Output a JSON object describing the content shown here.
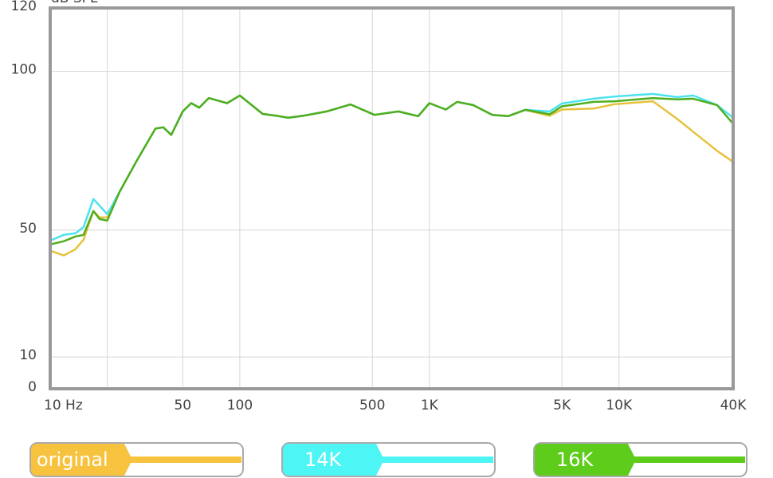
{
  "chart_data": {
    "type": "line",
    "ylabel": "dB SPL",
    "x": [
      10,
      11.8,
      13.6,
      15,
      16.9,
      18.2,
      20,
      23.2,
      28.7,
      35.9,
      39.5,
      43.5,
      50,
      55.4,
      61.1,
      68.6,
      85.7,
      100,
      132,
      157,
      180,
      215,
      287,
      384,
      513,
      686,
      873,
      1000,
      1220,
      1400,
      1700,
      2150,
      2600,
      3200,
      4300,
      5000,
      7340,
      9500,
      15100,
      20300,
      24600,
      32900,
      40000
    ],
    "series": [
      {
        "name": "original",
        "color": "#e6c23c",
        "tab_color": "#f7c23e",
        "values": [
          43.5,
          42,
          44,
          47,
          56,
          54,
          54,
          62,
          72,
          82,
          82.4,
          80,
          87.4,
          90,
          88.6,
          91.6,
          90,
          92.4,
          86.6,
          86,
          85.4,
          86,
          87.4,
          89.6,
          86.3,
          87.4,
          85.9,
          90,
          88,
          90.4,
          89.4,
          86.3,
          85.9,
          87.9,
          86,
          88,
          88.3,
          89.7,
          90.6,
          85,
          81,
          75,
          71.5
        ]
      },
      {
        "name": "14K",
        "color": "#4de3ee",
        "tab_color": "#4ef5f5",
        "values": [
          46.7,
          48.5,
          49,
          51,
          59.8,
          57.7,
          55,
          62,
          72,
          82,
          82.4,
          80,
          87.4,
          90,
          88.6,
          91.6,
          90,
          92.4,
          86.6,
          86,
          85.4,
          86,
          87.4,
          89.6,
          86.3,
          87.4,
          85.9,
          90,
          88,
          90.4,
          89.4,
          86.3,
          85.9,
          87.9,
          87.4,
          89.9,
          91.4,
          92.1,
          92.9,
          91.9,
          92.4,
          89.4,
          85.4
        ]
      },
      {
        "name": "16K",
        "color": "#4fae1f",
        "tab_color": "#5dcc1a",
        "values": [
          45.5,
          46.5,
          48,
          48.5,
          56,
          53.5,
          53,
          62,
          72,
          82,
          82.4,
          80,
          87.4,
          90,
          88.6,
          91.6,
          90,
          92.4,
          86.6,
          86,
          85.4,
          86,
          87.4,
          89.6,
          86.3,
          87.4,
          85.9,
          90,
          88,
          90.4,
          89.4,
          86.3,
          85.9,
          87.9,
          86.5,
          89,
          90.4,
          90.6,
          91.6,
          91.2,
          91.4,
          89.4,
          83.5
        ]
      }
    ],
    "xlog": true,
    "xlim": [
      10,
      40000
    ],
    "xticks": [
      {
        "value": 10,
        "label": "10  Hz"
      },
      {
        "value": 20,
        "label": null
      },
      50,
      100,
      500,
      {
        "value": 1000,
        "label": "1K"
      },
      {
        "value": 5000,
        "label": "5K"
      },
      {
        "value": 10000,
        "label": "10K"
      },
      {
        "value": 40000,
        "label": "40K"
      }
    ],
    "ylim": [
      0,
      120
    ],
    "yticks": [
      0,
      10,
      50,
      100,
      120
    ],
    "grid": true
  }
}
